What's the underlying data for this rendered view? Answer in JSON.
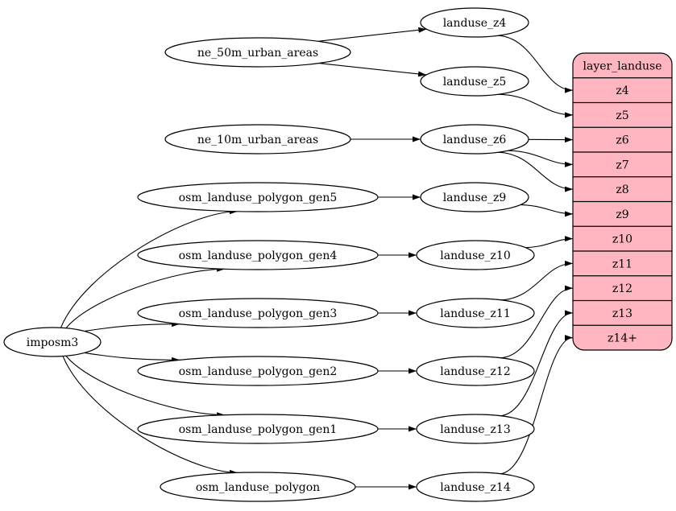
{
  "nodes": [
    {
      "id": "ne_50m_urban_areas",
      "label": "ne_50m_urban_areas"
    },
    {
      "id": "ne_10m_urban_areas",
      "label": "ne_10m_urban_areas"
    },
    {
      "id": "imposm3",
      "label": "imposm3"
    },
    {
      "id": "osm_landuse_polygon_gen5",
      "label": "osm_landuse_polygon_gen5"
    },
    {
      "id": "osm_landuse_polygon_gen4",
      "label": "osm_landuse_polygon_gen4"
    },
    {
      "id": "osm_landuse_polygon_gen3",
      "label": "osm_landuse_polygon_gen3"
    },
    {
      "id": "osm_landuse_polygon_gen2",
      "label": "osm_landuse_polygon_gen2"
    },
    {
      "id": "osm_landuse_polygon_gen1",
      "label": "osm_landuse_polygon_gen1"
    },
    {
      "id": "osm_landuse_polygon",
      "label": "osm_landuse_polygon"
    },
    {
      "id": "landuse_z4",
      "label": "landuse_z4"
    },
    {
      "id": "landuse_z5",
      "label": "landuse_z5"
    },
    {
      "id": "landuse_z6",
      "label": "landuse_z6"
    },
    {
      "id": "landuse_z9",
      "label": "landuse_z9"
    },
    {
      "id": "landuse_z10",
      "label": "landuse_z10"
    },
    {
      "id": "landuse_z11",
      "label": "landuse_z11"
    },
    {
      "id": "landuse_z12",
      "label": "landuse_z12"
    },
    {
      "id": "landuse_z13",
      "label": "landuse_z13"
    },
    {
      "id": "landuse_z14",
      "label": "landuse_z14"
    }
  ],
  "layer": {
    "title": "layer_landuse",
    "fill": "#ffb6c1",
    "fields": [
      "z4",
      "z5",
      "z6",
      "z7",
      "z8",
      "z9",
      "z10",
      "z11",
      "z12",
      "z13",
      "z14+"
    ]
  },
  "edges": [
    [
      "ne_50m_urban_areas",
      "landuse_z4"
    ],
    [
      "ne_50m_urban_areas",
      "landuse_z5"
    ],
    [
      "ne_10m_urban_areas",
      "landuse_z6"
    ],
    [
      "imposm3",
      "osm_landuse_polygon_gen5"
    ],
    [
      "imposm3",
      "osm_landuse_polygon_gen4"
    ],
    [
      "imposm3",
      "osm_landuse_polygon_gen3"
    ],
    [
      "imposm3",
      "osm_landuse_polygon_gen2"
    ],
    [
      "imposm3",
      "osm_landuse_polygon_gen1"
    ],
    [
      "imposm3",
      "osm_landuse_polygon"
    ],
    [
      "osm_landuse_polygon_gen5",
      "landuse_z9"
    ],
    [
      "osm_landuse_polygon_gen4",
      "landuse_z10"
    ],
    [
      "osm_landuse_polygon_gen3",
      "landuse_z11"
    ],
    [
      "osm_landuse_polygon_gen2",
      "landuse_z12"
    ],
    [
      "osm_landuse_polygon_gen1",
      "landuse_z13"
    ],
    [
      "osm_landuse_polygon",
      "landuse_z14"
    ],
    [
      "landuse_z4",
      "layer_landuse:z4"
    ],
    [
      "landuse_z5",
      "layer_landuse:z5"
    ],
    [
      "landuse_z6",
      "layer_landuse:z6"
    ],
    [
      "landuse_z6",
      "layer_landuse:z7"
    ],
    [
      "landuse_z6",
      "layer_landuse:z8"
    ],
    [
      "landuse_z9",
      "layer_landuse:z9"
    ],
    [
      "landuse_z10",
      "layer_landuse:z10"
    ],
    [
      "landuse_z11",
      "layer_landuse:z11"
    ],
    [
      "landuse_z12",
      "layer_landuse:z12"
    ],
    [
      "landuse_z13",
      "layer_landuse:z13"
    ],
    [
      "landuse_z14",
      "layer_landuse:z14+"
    ]
  ]
}
